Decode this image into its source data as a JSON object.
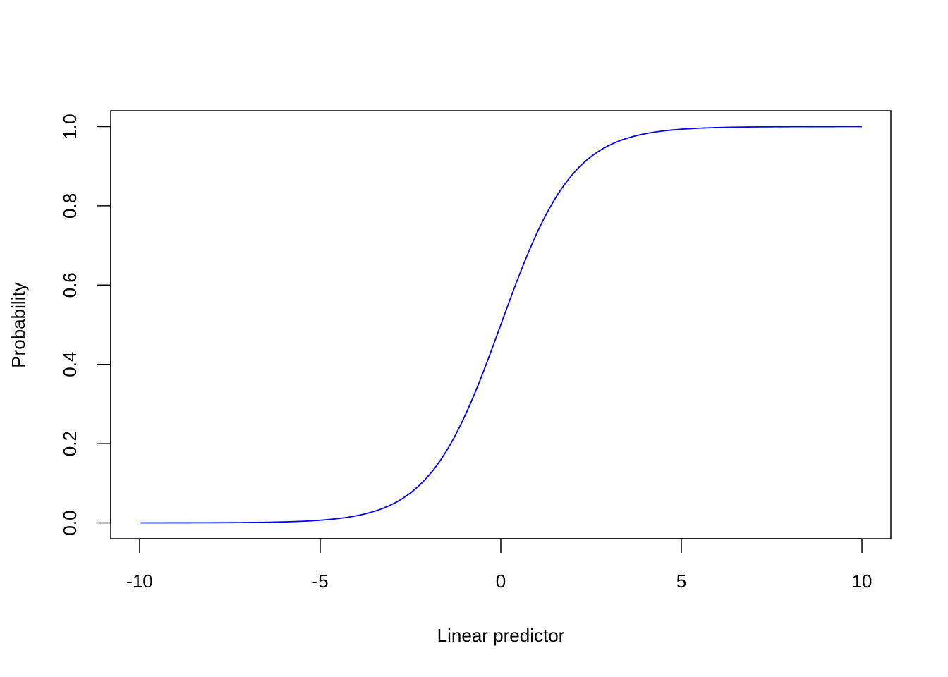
{
  "chart_data": {
    "type": "line",
    "xlabel": "Linear predictor",
    "ylabel": "Probability",
    "xlim": [
      -10.8,
      10.8
    ],
    "ylim": [
      -0.04,
      1.04
    ],
    "x_ticks": [
      -10,
      -5,
      0,
      5,
      10
    ],
    "x_tick_labels": [
      "-10",
      "-5",
      "0",
      "5",
      "10"
    ],
    "y_ticks": [
      0.0,
      0.2,
      0.4,
      0.6,
      0.8,
      1.0
    ],
    "y_tick_labels": [
      "0.0",
      "0.2",
      "0.4",
      "0.6",
      "0.8",
      "1.0"
    ],
    "grid": false,
    "series": [
      {
        "color": "#0000ff",
        "x": [
          -10,
          -9,
          -8,
          -7,
          -6,
          -5,
          -4.5,
          -4,
          -3.5,
          -3,
          -2.5,
          -2,
          -1.5,
          -1,
          -0.5,
          0,
          0.5,
          1,
          1.5,
          2,
          2.5,
          3,
          3.5,
          4,
          4.5,
          5,
          6,
          7,
          8,
          9,
          10
        ],
        "values": [
          0.0,
          0.0001,
          0.0003,
          0.0009,
          0.0025,
          0.0067,
          0.011,
          0.018,
          0.0293,
          0.0474,
          0.0759,
          0.1192,
          0.1824,
          0.2689,
          0.3775,
          0.5,
          0.6225,
          0.7311,
          0.8176,
          0.8808,
          0.9241,
          0.9526,
          0.9707,
          0.982,
          0.989,
          0.9933,
          0.9975,
          0.9991,
          0.9997,
          0.9999,
          1.0
        ]
      }
    ]
  }
}
